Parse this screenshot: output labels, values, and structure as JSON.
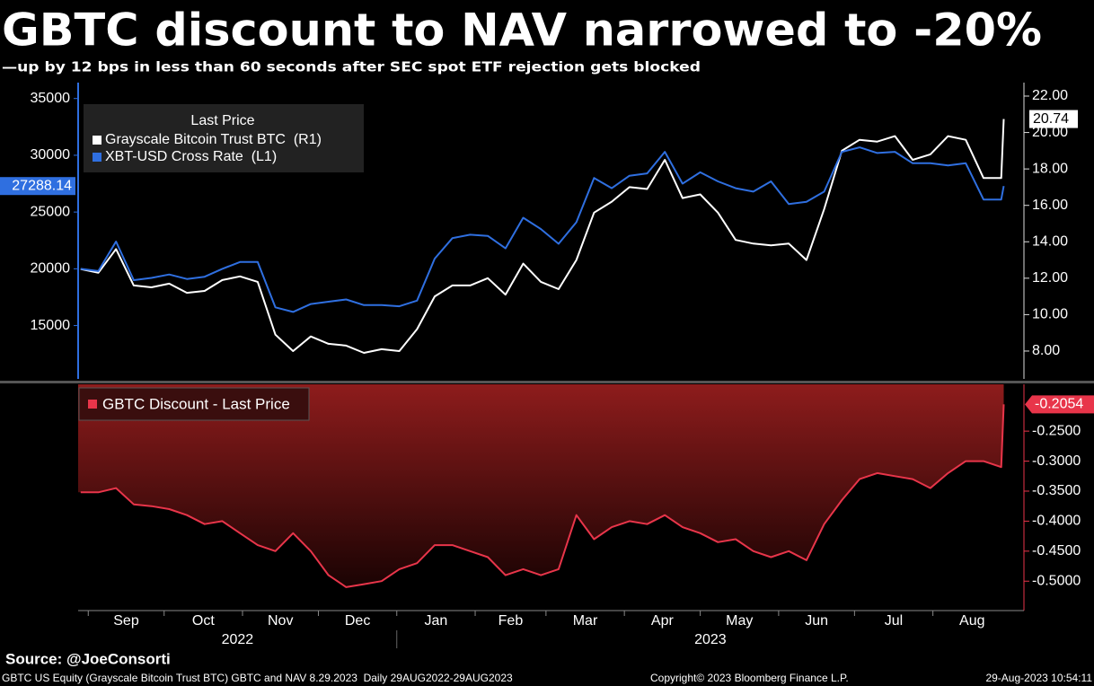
{
  "header": {
    "title": "GBTC discount to NAV narrowed to -20%",
    "subtitle": "—up by 12 bps in less than 60 seconds after SEC spot ETF rejection gets blocked"
  },
  "chart_data": [
    {
      "type": "line",
      "legend_title": "Last Price",
      "legend": "upper-left",
      "x": [
        "2022-08-29",
        "2022-09-05",
        "2022-09-12",
        "2022-09-19",
        "2022-09-26",
        "2022-10-03",
        "2022-10-10",
        "2022-10-17",
        "2022-10-24",
        "2022-10-31",
        "2022-11-07",
        "2022-11-14",
        "2022-11-21",
        "2022-11-28",
        "2022-12-05",
        "2022-12-12",
        "2022-12-19",
        "2022-12-26",
        "2023-01-02",
        "2023-01-09",
        "2023-01-16",
        "2023-01-23",
        "2023-01-30",
        "2023-02-06",
        "2023-02-13",
        "2023-02-20",
        "2023-02-27",
        "2023-03-06",
        "2023-03-13",
        "2023-03-20",
        "2023-03-27",
        "2023-04-03",
        "2023-04-10",
        "2023-04-17",
        "2023-04-24",
        "2023-05-01",
        "2023-05-08",
        "2023-05-15",
        "2023-05-22",
        "2023-05-29",
        "2023-06-05",
        "2023-06-12",
        "2023-06-19",
        "2023-06-26",
        "2023-07-03",
        "2023-07-10",
        "2023-07-17",
        "2023-07-24",
        "2023-07-31",
        "2023-08-07",
        "2023-08-14",
        "2023-08-21",
        "2023-08-28",
        "2023-08-29"
      ],
      "xlim": [
        "2022-08-28",
        "2023-09-06"
      ],
      "ylim": [
        10300,
        36400
      ],
      "yticks": [
        15000,
        20000,
        25000,
        30000,
        35000
      ],
      "y2lim": [
        6.47,
        22.74
      ],
      "y2ticks": [
        {
          "value": 8,
          "label": "8.00"
        },
        {
          "value": 10,
          "label": "10.00"
        },
        {
          "value": 12,
          "label": "12.00"
        },
        {
          "value": 14,
          "label": "14.00"
        },
        {
          "value": 16,
          "label": "16.00"
        },
        {
          "value": 18,
          "label": "18.00"
        },
        {
          "value": 20,
          "label": "20.00"
        },
        {
          "value": 22,
          "label": "22.00"
        }
      ],
      "series": [
        {
          "name": "Grayscale Bitcoin Trust BTC  (R1)",
          "color": "#ffffff",
          "axis": "y2",
          "values": [
            12.5,
            12.3,
            13.6,
            11.6,
            11.5,
            11.7,
            11.2,
            11.3,
            11.9,
            12.1,
            11.8,
            8.9,
            8.0,
            8.8,
            8.4,
            8.3,
            7.9,
            8.1,
            8.0,
            9.2,
            11.0,
            11.6,
            11.6,
            12.0,
            11.1,
            12.8,
            11.8,
            11.4,
            13.0,
            15.6,
            16.2,
            17.0,
            16.9,
            18.5,
            16.4,
            16.6,
            15.6,
            14.1,
            13.9,
            13.8,
            13.9,
            13.0,
            15.8,
            19.0,
            19.6,
            19.5,
            19.8,
            18.5,
            18.8,
            19.8,
            19.6,
            17.5,
            17.5,
            20.74
          ]
        },
        {
          "name": "XBT-USD Cross Rate  (L1)",
          "color": "#2f6fe0",
          "values": [
            20000,
            19800,
            22400,
            19000,
            19200,
            19500,
            19100,
            19300,
            20000,
            20600,
            20600,
            16600,
            16200,
            16900,
            17100,
            17300,
            16800,
            16800,
            16700,
            17200,
            20900,
            22700,
            23000,
            22900,
            21800,
            24500,
            23500,
            22200,
            24100,
            28000,
            27100,
            28200,
            28400,
            30300,
            27500,
            28500,
            27700,
            27100,
            26800,
            27700,
            25700,
            25900,
            26800,
            30300,
            30700,
            30200,
            30300,
            29300,
            29300,
            29100,
            29300,
            26100,
            26100,
            27288.14
          ]
        }
      ]
    },
    {
      "type": "area",
      "color": "#e8354a",
      "series": [
        {
          "name": "GBTC Discount - Last Price",
          "color": "#e8354a",
          "values": [
            -0.352,
            -0.352,
            -0.345,
            -0.372,
            -0.375,
            -0.38,
            -0.39,
            -0.405,
            -0.4,
            -0.42,
            -0.44,
            -0.45,
            -0.42,
            -0.45,
            -0.49,
            -0.51,
            -0.505,
            -0.5,
            -0.48,
            -0.47,
            -0.44,
            -0.44,
            -0.45,
            -0.46,
            -0.49,
            -0.48,
            -0.49,
            -0.48,
            -0.39,
            -0.43,
            -0.41,
            -0.4,
            -0.405,
            -0.39,
            -0.41,
            -0.42,
            -0.435,
            -0.43,
            -0.45,
            -0.46,
            -0.45,
            -0.465,
            -0.405,
            -0.365,
            -0.33,
            -0.32,
            -0.325,
            -0.33,
            -0.345,
            -0.32,
            -0.3,
            -0.3,
            -0.31,
            -0.2054
          ]
        }
      ],
      "x": [
        "2022-08-29",
        "2022-09-05",
        "2022-09-12",
        "2022-09-19",
        "2022-09-26",
        "2022-10-03",
        "2022-10-10",
        "2022-10-17",
        "2022-10-24",
        "2022-10-31",
        "2022-11-07",
        "2022-11-14",
        "2022-11-21",
        "2022-11-28",
        "2022-12-05",
        "2022-12-12",
        "2022-12-19",
        "2022-12-26",
        "2023-01-02",
        "2023-01-09",
        "2023-01-16",
        "2023-01-23",
        "2023-01-30",
        "2023-02-06",
        "2023-02-13",
        "2023-02-20",
        "2023-02-27",
        "2023-03-06",
        "2023-03-13",
        "2023-03-20",
        "2023-03-27",
        "2023-04-03",
        "2023-04-10",
        "2023-04-17",
        "2023-04-24",
        "2023-05-01",
        "2023-05-08",
        "2023-05-15",
        "2023-05-22",
        "2023-05-29",
        "2023-06-05",
        "2023-06-12",
        "2023-06-19",
        "2023-06-26",
        "2023-07-03",
        "2023-07-10",
        "2023-07-17",
        "2023-07-24",
        "2023-07-31",
        "2023-08-07",
        "2023-08-14",
        "2023-08-21",
        "2023-08-28",
        "2023-08-29"
      ],
      "xlim": [
        "2022-08-28",
        "2023-09-06"
      ],
      "ylim": [
        -0.549,
        -0.172
      ],
      "yticks": [
        {
          "value": -0.25,
          "label": "-0.2500"
        },
        {
          "value": -0.3,
          "label": "-0.3000"
        },
        {
          "value": -0.35,
          "label": "-0.3500"
        },
        {
          "value": -0.4,
          "label": "-0.4000"
        },
        {
          "value": -0.45,
          "label": "-0.4500"
        },
        {
          "value": -0.5,
          "label": "-0.5000"
        }
      ],
      "months": [
        "Sep",
        "Oct",
        "Nov",
        "Dec",
        "Jan",
        "Feb",
        "Mar",
        "Apr",
        "May",
        "Jun",
        "Jul",
        "Aug"
      ],
      "years": [
        "2022",
        "2023"
      ]
    }
  ],
  "footer": {
    "source": "Source: @JoeConsorti",
    "description": "GBTC US Equity (Grayscale Bitcoin Trust BTC) GBTC and NAV 8.29.2023  Daily 29AUG2022-29AUG2023",
    "copyright": "Copyright© 2023 Bloomberg Finance L.P.",
    "timestamp": "29-Aug-2023 10:54:11"
  }
}
